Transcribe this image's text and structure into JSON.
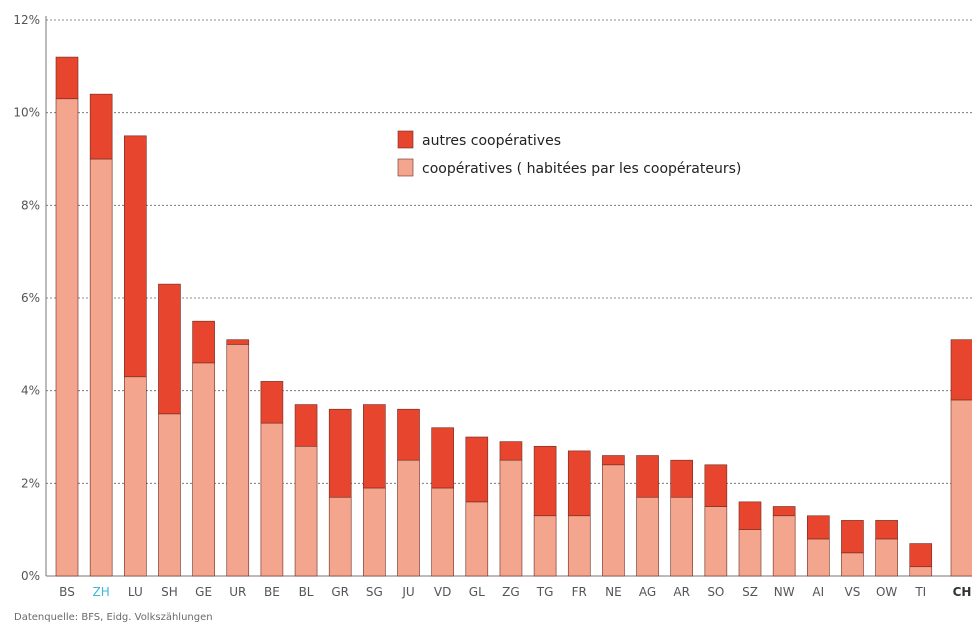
{
  "chart_data": {
    "type": "bar",
    "stacked": true,
    "categories": [
      "BS",
      "ZH",
      "LU",
      "SH",
      "GE",
      "UR",
      "BE",
      "BL",
      "GR",
      "SG",
      "JU",
      "VD",
      "GL",
      "ZG",
      "TG",
      "FR",
      "NE",
      "AG",
      "AR",
      "SO",
      "SZ",
      "NW",
      "AI",
      "VS",
      "OW",
      "TI",
      "CH"
    ],
    "highlight_category": "ZH",
    "bold_category": "CH",
    "series": [
      {
        "name": "coopératives ( habitées par les coopérateurs)",
        "color": "#f4a58e",
        "values": [
          10.3,
          9.0,
          4.3,
          3.5,
          4.6,
          5.0,
          3.3,
          2.8,
          1.7,
          1.9,
          2.5,
          1.9,
          1.6,
          2.5,
          1.3,
          1.3,
          2.4,
          1.7,
          1.7,
          1.5,
          1.0,
          1.3,
          0.8,
          0.5,
          0.8,
          0.2,
          3.8
        ]
      },
      {
        "name": "autres coopératives",
        "color": "#e8452f",
        "values": [
          0.9,
          1.4,
          5.2,
          2.8,
          0.9,
          0.1,
          0.9,
          0.9,
          1.9,
          1.8,
          1.1,
          1.3,
          1.4,
          0.4,
          1.5,
          1.4,
          0.2,
          0.9,
          0.8,
          0.9,
          0.6,
          0.2,
          0.5,
          0.7,
          0.4,
          0.5,
          1.3
        ]
      }
    ],
    "yticks": [
      "0%",
      "2%",
      "4%",
      "6%",
      "8%",
      "10%",
      "12%"
    ],
    "ylim": [
      0,
      12
    ],
    "grid": true,
    "legend_position": "top-center"
  },
  "source_note": "Datenquelle: BFS, Eidg. Volkszählungen"
}
